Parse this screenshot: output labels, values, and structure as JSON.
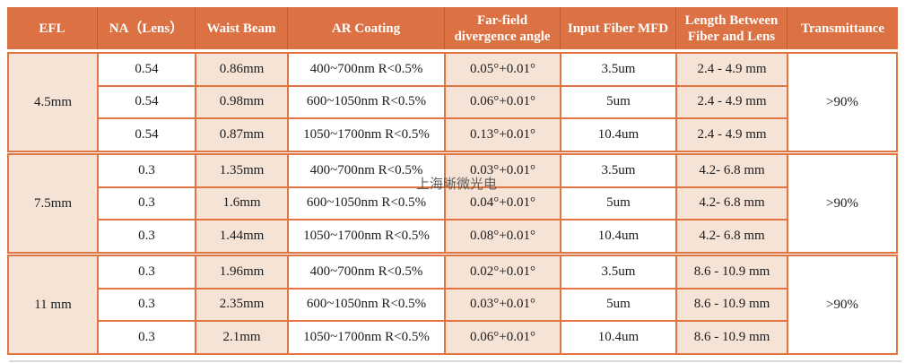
{
  "watermark": "上海晰微光电",
  "colors": {
    "header_bg": "#dc7143",
    "border_orange": "#e17440",
    "cell_beige": "#f5e3d6",
    "cell_white": "#ffffff",
    "header_text": "#ffffff",
    "body_text": "#1c1c1c",
    "watermark_text": "#4f4f4f"
  },
  "table": {
    "headers": [
      "EFL",
      "NA（Lens）",
      "Waist Beam",
      "AR Coating",
      "Far-field divergence angle",
      "Input Fiber MFD",
      "Length Between Fiber and Lens",
      "Transmittance"
    ],
    "groups": [
      {
        "efl": "4.5mm",
        "transmittance": ">90%",
        "rows": [
          {
            "na": "0.54",
            "waist": "0.86mm",
            "coating": "400~700nm R<0.5%",
            "divergence": "0.05°+0.01°",
            "mfd": "3.5um",
            "length": "2.4 - 4.9 mm"
          },
          {
            "na": "0.54",
            "waist": "0.98mm",
            "coating": "600~1050nm R<0.5%",
            "divergence": "0.06°+0.01°",
            "mfd": "5um",
            "length": "2.4 - 4.9 mm"
          },
          {
            "na": "0.54",
            "waist": "0.87mm",
            "coating": "1050~1700nm R<0.5%",
            "divergence": "0.13°+0.01°",
            "mfd": "10.4um",
            "length": "2.4 - 4.9 mm"
          }
        ]
      },
      {
        "efl": "7.5mm",
        "transmittance": ">90%",
        "rows": [
          {
            "na": "0.3",
            "waist": "1.35mm",
            "coating": "400~700nm R<0.5%",
            "divergence": "0.03°+0.01°",
            "mfd": "3.5um",
            "length": "4.2- 6.8 mm"
          },
          {
            "na": "0.3",
            "waist": "1.6mm",
            "coating": "600~1050nm R<0.5%",
            "divergence": "0.04°+0.01°",
            "mfd": "5um",
            "length": "4.2- 6.8 mm"
          },
          {
            "na": "0.3",
            "waist": "1.44mm",
            "coating": "1050~1700nm R<0.5%",
            "divergence": "0.08°+0.01°",
            "mfd": "10.4um",
            "length": "4.2- 6.8 mm"
          }
        ]
      },
      {
        "efl": "11 mm",
        "transmittance": ">90%",
        "rows": [
          {
            "na": "0.3",
            "waist": "1.96mm",
            "coating": "400~700nm R<0.5%",
            "divergence": "0.02°+0.01°",
            "mfd": "3.5um",
            "length": "8.6 - 10.9 mm"
          },
          {
            "na": "0.3",
            "waist": "2.35mm",
            "coating": "600~1050nm R<0.5%",
            "divergence": "0.03°+0.01°",
            "mfd": "5um",
            "length": "8.6 - 10.9 mm"
          },
          {
            "na": "0.3",
            "waist": "2.1mm",
            "coating": "1050~1700nm R<0.5%",
            "divergence": "0.06°+0.01°",
            "mfd": "10.4um",
            "length": "8.6 - 10.9 mm"
          }
        ]
      }
    ]
  }
}
